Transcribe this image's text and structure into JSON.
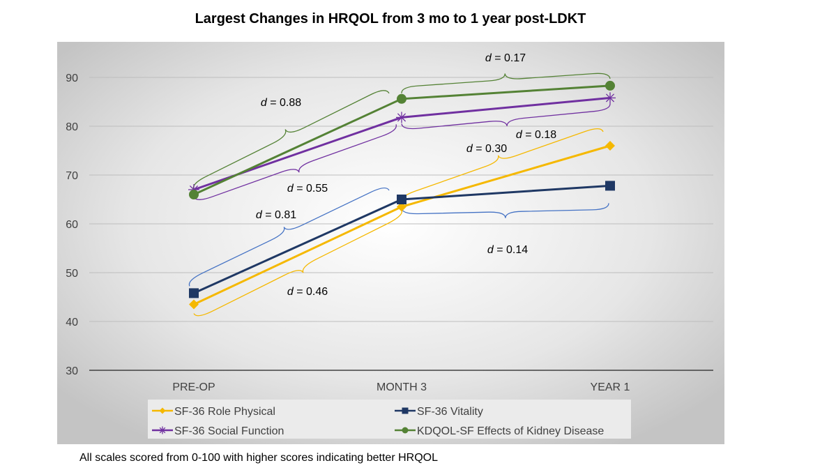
{
  "chart_data": {
    "type": "line",
    "title": "Largest Changes in HRQOL from 3 mo to 1 year post-LDKT",
    "categories": [
      "PRE-OP",
      "MONTH 3",
      "YEAR 1"
    ],
    "ylim": [
      30,
      90
    ],
    "yticks": [
      "30",
      "40",
      "50",
      "60",
      "70",
      "80",
      "90"
    ],
    "grid": true,
    "legend_position": "bottom",
    "series": [
      {
        "name": "SF-36 Role Physical",
        "values": [
          43.5,
          63.5,
          76
        ],
        "color": "#f5b800",
        "marker": "diamond"
      },
      {
        "name": "SF-36 Vitality",
        "values": [
          45.8,
          65,
          67.8
        ],
        "color": "#1f3864",
        "marker": "square"
      },
      {
        "name": "SF-36 Social Function",
        "values": [
          67,
          81.8,
          85.8
        ],
        "color": "#7030a0",
        "marker": "star"
      },
      {
        "name": "KDQOL-SF Effects of Kidney Disease",
        "values": [
          66,
          85.6,
          88.3
        ],
        "color": "#548235",
        "marker": "circle"
      }
    ],
    "annotations": [
      {
        "prefix": "d",
        "text": " = 0.88"
      },
      {
        "prefix": "d",
        "text": " = 0.55"
      },
      {
        "prefix": "d",
        "text": " = 0.81"
      },
      {
        "prefix": "d",
        "text": " = 0.46"
      },
      {
        "prefix": "d",
        "text": " = 0.17"
      },
      {
        "prefix": "d",
        "text": " = 0.18"
      },
      {
        "prefix": "d",
        "text": " = 0.30"
      },
      {
        "prefix": "d",
        "text": " = 0.14"
      }
    ]
  },
  "footnote": "All scales scored from 0-100 with higher scores indicating better HRQOL"
}
